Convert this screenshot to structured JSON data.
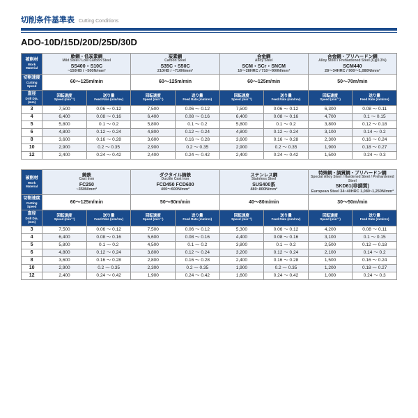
{
  "title_jp": "切削条件基準表",
  "title_en": "Cutting Conditions",
  "part_no": "ADO-10D/15D/20D/25D/30D",
  "labels": {
    "work_jp": "被削材",
    "work_en": "Work Material",
    "cspeed_jp": "切削速度",
    "cspeed_en": "Cutting Speed",
    "dia_jp": "直径",
    "dia_en": "Drill Dia. (mm)",
    "rot_jp": "回転速度",
    "rot_en": "Speed (min⁻¹)",
    "feed_jp": "送り量",
    "feed_en": "Feed Rate (mm/rev)"
  },
  "tables": [
    {
      "materials": [
        {
          "jp": "軟鋼・低炭素鋼",
          "en": "Mild Steel / Low Carbon Steel",
          "code": "SS400・S10C",
          "spec": "~150HB / ~500N/mm²",
          "speed": "60～125m/min"
        },
        {
          "jp": "炭素鋼",
          "en": "Carbon Steel",
          "code": "S35C・S50C",
          "spec": "210HB / ~710N/mm²",
          "speed": "60～125m/min"
        },
        {
          "jp": "合金鋼",
          "en": "Alloy Steel",
          "code": "SCM・SCr・SNCM",
          "spec": "16～28HRC / 710～900N/mm²",
          "speed": "60～125m/min"
        },
        {
          "jp": "合金鋼・プリハードン鋼",
          "en": "Alloy Steel / Prehardened Steel (C≧0.3%)",
          "code": "SCM440",
          "spec": "28～34HRC / 900～1,080N/mm²",
          "speed": "50～70m/min"
        }
      ],
      "rows": [
        {
          "dia": "3",
          "c": [
            [
              "7,500",
              "0.06 ～ 0.12"
            ],
            [
              "7,500",
              "0.06 ～ 0.12"
            ],
            [
              "7,500",
              "0.06 ～ 0.12"
            ],
            [
              "6,300",
              "0.08 ～ 0.11"
            ]
          ]
        },
        {
          "dia": "4",
          "c": [
            [
              "6,400",
              "0.08 ～ 0.16"
            ],
            [
              "6,400",
              "0.08 ～ 0.16"
            ],
            [
              "6,400",
              "0.08 ～ 0.16"
            ],
            [
              "4,700",
              "0.1  ～ 0.15"
            ]
          ]
        },
        {
          "dia": "5",
          "c": [
            [
              "5,800",
              "0.1  ～ 0.2"
            ],
            [
              "5,800",
              "0.1  ～ 0.2"
            ],
            [
              "5,800",
              "0.1  ～ 0.2"
            ],
            [
              "3,800",
              "0.12 ～ 0.18"
            ]
          ]
        },
        {
          "dia": "6",
          "c": [
            [
              "4,800",
              "0.12 ～ 0.24"
            ],
            [
              "4,800",
              "0.12 ～ 0.24"
            ],
            [
              "4,800",
              "0.12 ～ 0.24"
            ],
            [
              "3,100",
              "0.14 ～ 0.2"
            ]
          ]
        },
        {
          "dia": "8",
          "c": [
            [
              "3,600",
              "0.16 ～ 0.28"
            ],
            [
              "3,600",
              "0.16 ～ 0.28"
            ],
            [
              "3,600",
              "0.16 ～ 0.28"
            ],
            [
              "2,300",
              "0.16 ～ 0.24"
            ]
          ]
        },
        {
          "dia": "10",
          "c": [
            [
              "2,900",
              "0.2  ～ 0.35"
            ],
            [
              "2,900",
              "0.2  ～ 0.35"
            ],
            [
              "2,900",
              "0.2  ～ 0.35"
            ],
            [
              "1,900",
              "0.18 ～ 0.27"
            ]
          ]
        },
        {
          "dia": "12",
          "c": [
            [
              "2,400",
              "0.24 ～ 0.42"
            ],
            [
              "2,400",
              "0.24 ～ 0.42"
            ],
            [
              "2,400",
              "0.24 ～ 0.42"
            ],
            [
              "1,500",
              "0.24 ～ 0.3"
            ]
          ]
        }
      ]
    },
    {
      "materials": [
        {
          "jp": "鋳鉄",
          "en": "Cast Iron",
          "code": "FC250",
          "spec": "~350N/mm²",
          "speed": "60～125m/min"
        },
        {
          "jp": "ダクタイル鋳鉄",
          "en": "Ductile Cast Iron",
          "code": "FCD450 FCD600",
          "spec": "400～600N/mm²",
          "speed": "50～80m/min"
        },
        {
          "jp": "ステンレス鋼",
          "en": "Stainless Steel",
          "code": "SUS400系",
          "spec": "480~800N/mm²",
          "speed": "40～80m/min"
        },
        {
          "jp": "特殊鋼・調質鋼・プリハードン鋼",
          "en": "Special Alloy Steel / Hardened Steel / Prehardened Steel",
          "code": "SKD61(非調質)",
          "spec": "European Steel 34~40HRC 1,080~1,250N/mm²",
          "speed": "30～50m/min"
        }
      ],
      "rows": [
        {
          "dia": "3",
          "c": [
            [
              "7,500",
              "0.06 ～ 0.12"
            ],
            [
              "7,500",
              "0.06 ～ 0.12"
            ],
            [
              "5,300",
              "0.06 ～ 0.12"
            ],
            [
              "4,200",
              "0.08 ～ 0.11"
            ]
          ]
        },
        {
          "dia": "4",
          "c": [
            [
              "6,400",
              "0.08 ～ 0.16"
            ],
            [
              "5,600",
              "0.08 ～ 0.16"
            ],
            [
              "4,400",
              "0.08 ～ 0.16"
            ],
            [
              "3,100",
              "0.1  ～ 0.15"
            ]
          ]
        },
        {
          "dia": "5",
          "c": [
            [
              "5,800",
              "0.1  ～ 0.2"
            ],
            [
              "4,500",
              "0.1  ～ 0.2"
            ],
            [
              "3,800",
              "0.1  ～ 0.2"
            ],
            [
              "2,500",
              "0.12 ～ 0.18"
            ]
          ]
        },
        {
          "dia": "6",
          "c": [
            [
              "4,800",
              "0.12 ～ 0.24"
            ],
            [
              "3,800",
              "0.12 ～ 0.24"
            ],
            [
              "3,200",
              "0.12 ～ 0.24"
            ],
            [
              "2,100",
              "0.14 ～ 0.2"
            ]
          ]
        },
        {
          "dia": "8",
          "c": [
            [
              "3,600",
              "0.16 ～ 0.28"
            ],
            [
              "2,800",
              "0.16 ～ 0.28"
            ],
            [
              "2,400",
              "0.16 ～ 0.28"
            ],
            [
              "1,500",
              "0.16 ～ 0.24"
            ]
          ]
        },
        {
          "dia": "10",
          "c": [
            [
              "2,900",
              "0.2  ～ 0.35"
            ],
            [
              "2,300",
              "0.2  ～ 0.35"
            ],
            [
              "1,900",
              "0.2  ～ 0.35"
            ],
            [
              "1,200",
              "0.18 ～ 0.27"
            ]
          ]
        },
        {
          "dia": "12",
          "c": [
            [
              "2,400",
              "0.24 ～ 0.42"
            ],
            [
              "1,900",
              "0.24 ～ 0.42"
            ],
            [
              "1,600",
              "0.24 ～ 0.42"
            ],
            [
              "1,000",
              "0.24 ～ 0.3"
            ]
          ]
        }
      ]
    }
  ]
}
